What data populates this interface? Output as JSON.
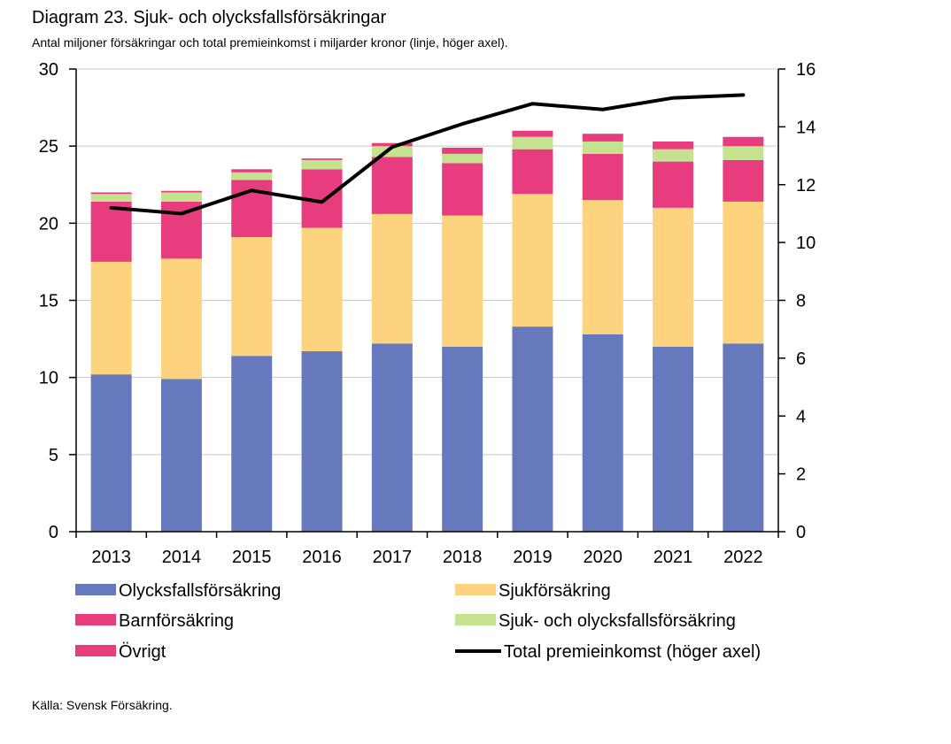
{
  "title": "Diagram 23. Sjuk- och olycksfallsförsäkringar",
  "subtitle": "Antal miljoner försäkringar och total premieinkomst i miljarder kronor (linje, höger axel).",
  "source": "Källa: Svensk Försäkring.",
  "chart_data": {
    "type": "bar",
    "stacked": true,
    "categories": [
      "2013",
      "2014",
      "2015",
      "2016",
      "2017",
      "2018",
      "2019",
      "2020",
      "2021",
      "2022"
    ],
    "series": [
      {
        "name": "Olycksfallsförsäkring",
        "color": "#6779BD",
        "values": [
          10.2,
          9.9,
          11.4,
          11.7,
          12.2,
          12.0,
          13.3,
          12.8,
          12.0,
          12.2
        ]
      },
      {
        "name": "Sjukförsäkring",
        "color": "#FDD37E",
        "values": [
          7.3,
          7.8,
          7.7,
          8.0,
          8.4,
          8.5,
          8.6,
          8.7,
          9.0,
          9.2
        ]
      },
      {
        "name": "Barnförsäkring",
        "color": "#E73D7F",
        "values": [
          3.9,
          3.7,
          3.7,
          3.8,
          3.7,
          3.4,
          2.9,
          3.0,
          3.0,
          2.7
        ]
      },
      {
        "name": "Sjuk- och olycksfallsförsäkring",
        "color": "#C5E38F",
        "values": [
          0.5,
          0.6,
          0.5,
          0.6,
          0.7,
          0.6,
          0.8,
          0.8,
          0.8,
          0.9
        ]
      },
      {
        "name": "Övrigt",
        "color": "#E73D7F",
        "values": [
          0.1,
          0.1,
          0.2,
          0.1,
          0.2,
          0.4,
          0.4,
          0.5,
          0.5,
          0.6
        ]
      }
    ],
    "line": {
      "name": "Total premieinkomst (höger axel)",
      "color": "#000000",
      "values": [
        11.2,
        11.0,
        11.8,
        11.4,
        13.3,
        14.1,
        14.8,
        14.6,
        15.0,
        15.1
      ]
    },
    "ylim": [
      0,
      30
    ],
    "yticks": [
      0,
      5,
      10,
      15,
      20,
      25,
      30
    ],
    "y2lim": [
      0,
      16
    ],
    "y2ticks": [
      0,
      2,
      4,
      6,
      8,
      10,
      12,
      14,
      16
    ],
    "legend_position": "bottom"
  }
}
